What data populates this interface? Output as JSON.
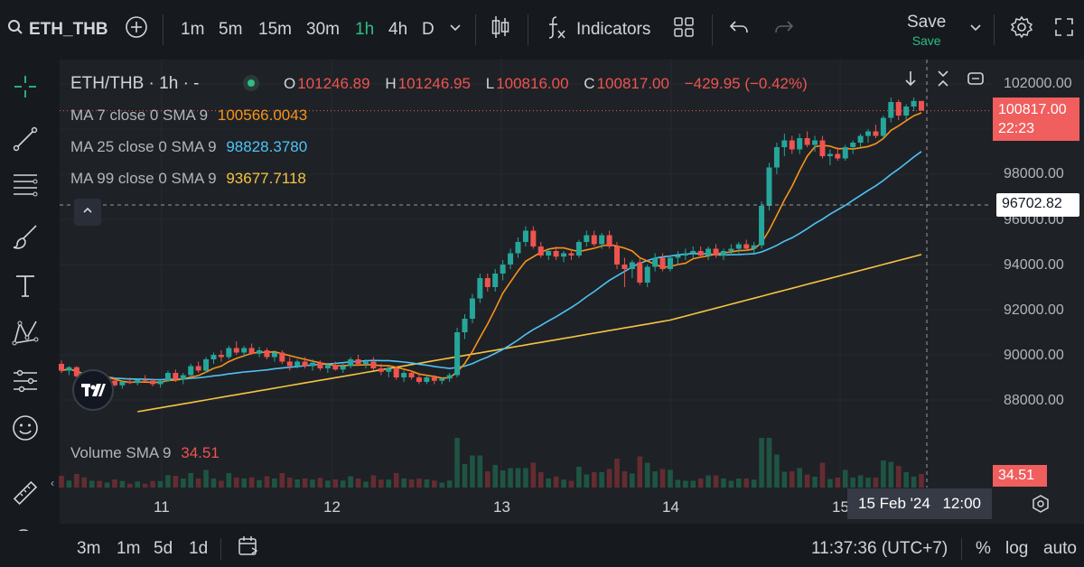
{
  "toolbar": {
    "symbol": "ETH_THB",
    "intervals": [
      "1m",
      "5m",
      "15m",
      "30m",
      "1h",
      "4h",
      "D"
    ],
    "active_interval": "1h",
    "indicators_label": "Indicators",
    "save_label": "Save",
    "save_sub_label": "Save"
  },
  "legend": {
    "title": "ETH/THB · 1h · -",
    "open_prefix": "O",
    "open": "101246.89",
    "high_prefix": "H",
    "high": "101246.95",
    "low_prefix": "L",
    "low": "100816.00",
    "close_prefix": "C",
    "close": "100817.00",
    "change": "−429.95 (−0.42%)",
    "ma7_label": "MA 7 close 0 SMA 9",
    "ma7_value": "100566.0043",
    "ma25_label": "MA 25 close 0 SMA 9",
    "ma25_value": "98828.3780",
    "ma99_label": "MA 99 close 0 SMA 9",
    "ma99_value": "93677.7118",
    "volume_label": "Volume SMA 9",
    "volume_value": "34.51"
  },
  "price_axis": {
    "labels": [
      "102000.00",
      "98000.00",
      "96000.00",
      "94000.00",
      "92000.00",
      "90000.00",
      "88000.00"
    ],
    "last_price": "100817.00",
    "countdown": "22:23",
    "crosshair_price": "96702.82",
    "volume_tag": "34.51"
  },
  "time_axis": {
    "labels": [
      "11",
      "12",
      "13",
      "14",
      "15"
    ],
    "crosshair_date": "15 Feb '24",
    "crosshair_time": "12:00"
  },
  "bottom": {
    "ranges": [
      "3m",
      "1m",
      "5d",
      "1d"
    ],
    "clock": "11:37:36 (UTC+7)",
    "percent": "%",
    "log": "log",
    "auto": "auto"
  },
  "colors": {
    "up": "#26a69a",
    "down": "#ef5350",
    "ma7": "#f7931a",
    "ma25": "#4fc3f7",
    "ma99": "#f6c343",
    "active_interval": "#2ebd85",
    "price_tag": "#f05e5e"
  },
  "chart_data": {
    "type": "candlestick",
    "x_label_days": [
      "11",
      "12",
      "13",
      "14",
      "15"
    ],
    "ylim": [
      86500,
      103000
    ],
    "candles": [
      [
        89600,
        89750,
        89200,
        89300
      ],
      [
        89300,
        89500,
        89100,
        89450
      ],
      [
        89450,
        89500,
        89000,
        89050
      ],
      [
        89050,
        89200,
        88700,
        88800
      ],
      [
        88800,
        89000,
        88500,
        88900
      ],
      [
        88900,
        89050,
        88700,
        88750
      ],
      [
        88750,
        88900,
        88600,
        88850
      ],
      [
        88850,
        89000,
        88600,
        88650
      ],
      [
        88650,
        88850,
        88500,
        88800
      ],
      [
        88800,
        89000,
        88700,
        88750
      ],
      [
        88750,
        88950,
        88650,
        88900
      ],
      [
        88900,
        89100,
        88800,
        88850
      ],
      [
        88850,
        88950,
        88600,
        88700
      ],
      [
        88700,
        88900,
        88550,
        88850
      ],
      [
        88850,
        89300,
        88800,
        89200
      ],
      [
        89200,
        89350,
        88800,
        88900
      ],
      [
        88900,
        89200,
        88700,
        89100
      ],
      [
        89100,
        89600,
        89000,
        89500
      ],
      [
        89500,
        89700,
        89200,
        89300
      ],
      [
        89300,
        89900,
        89200,
        89800
      ],
      [
        89800,
        90100,
        89600,
        90000
      ],
      [
        90000,
        90200,
        89700,
        89900
      ],
      [
        89900,
        90400,
        89800,
        90300
      ],
      [
        90300,
        90600,
        90000,
        90100
      ],
      [
        90100,
        90400,
        89900,
        90300
      ],
      [
        90300,
        90500,
        90000,
        90050
      ],
      [
        90050,
        90350,
        89900,
        90200
      ],
      [
        90200,
        90300,
        89800,
        89900
      ],
      [
        89900,
        90200,
        89700,
        90100
      ],
      [
        90100,
        90200,
        89600,
        89700
      ],
      [
        89700,
        89900,
        89300,
        89500
      ],
      [
        89500,
        89800,
        89400,
        89700
      ],
      [
        89700,
        89900,
        89400,
        89500
      ],
      [
        89500,
        89800,
        89300,
        89650
      ],
      [
        89650,
        89750,
        89300,
        89400
      ],
      [
        89400,
        89600,
        89200,
        89550
      ],
      [
        89550,
        89700,
        89300,
        89350
      ],
      [
        89350,
        89600,
        89200,
        89500
      ],
      [
        89500,
        89900,
        89400,
        89800
      ],
      [
        89800,
        90000,
        89500,
        89600
      ],
      [
        89600,
        89800,
        89400,
        89700
      ],
      [
        89700,
        89900,
        89300,
        89400
      ],
      [
        89400,
        89600,
        89100,
        89250
      ],
      [
        89250,
        89500,
        89000,
        89400
      ],
      [
        89400,
        89500,
        88900,
        89000
      ],
      [
        89000,
        89300,
        88800,
        89200
      ],
      [
        89200,
        89300,
        88900,
        89000
      ],
      [
        89000,
        89200,
        88700,
        88800
      ],
      [
        88800,
        89100,
        88700,
        89000
      ],
      [
        89000,
        89100,
        88700,
        88850
      ],
      [
        88850,
        89000,
        88700,
        88950
      ],
      [
        88950,
        89200,
        88800,
        89100
      ],
      [
        89100,
        91200,
        89000,
        91000
      ],
      [
        91000,
        91800,
        90700,
        91600
      ],
      [
        91600,
        92700,
        91400,
        92500
      ],
      [
        92500,
        93600,
        92300,
        93400
      ],
      [
        93400,
        93600,
        92800,
        93000
      ],
      [
        93000,
        93800,
        92800,
        93600
      ],
      [
        93600,
        94200,
        93300,
        94000
      ],
      [
        94000,
        94700,
        93800,
        94500
      ],
      [
        94500,
        95200,
        94300,
        95000
      ],
      [
        95000,
        95700,
        94800,
        95500
      ],
      [
        95500,
        95700,
        94700,
        94800
      ],
      [
        94800,
        95000,
        94300,
        94400
      ],
      [
        94400,
        94700,
        94200,
        94600
      ],
      [
        94600,
        94800,
        94200,
        94350
      ],
      [
        94350,
        94600,
        94100,
        94500
      ],
      [
        94500,
        94700,
        94200,
        94400
      ],
      [
        94400,
        95100,
        94300,
        95000
      ],
      [
        95000,
        95500,
        94800,
        95300
      ],
      [
        95300,
        95500,
        94800,
        94900
      ],
      [
        94900,
        95400,
        94700,
        95300
      ],
      [
        95300,
        95500,
        94700,
        94800
      ],
      [
        94800,
        95000,
        93800,
        94000
      ],
      [
        94000,
        94300,
        93000,
        93800
      ],
      [
        93800,
        94200,
        93400,
        94100
      ],
      [
        94100,
        94300,
        93100,
        93200
      ],
      [
        93200,
        94000,
        93000,
        93900
      ],
      [
        93900,
        94500,
        93700,
        94300
      ],
      [
        94300,
        94500,
        93700,
        93800
      ],
      [
        93800,
        94400,
        93700,
        94300
      ],
      [
        94300,
        94600,
        94000,
        94400
      ],
      [
        94400,
        94700,
        94200,
        94500
      ],
      [
        94500,
        94800,
        94300,
        94600
      ],
      [
        94600,
        94800,
        94300,
        94400
      ],
      [
        94400,
        94800,
        94200,
        94700
      ],
      [
        94700,
        94900,
        94300,
        94400
      ],
      [
        94400,
        94700,
        94200,
        94600
      ],
      [
        94600,
        94900,
        94400,
        94700
      ],
      [
        94700,
        95000,
        94500,
        94900
      ],
      [
        94900,
        95100,
        94600,
        94700
      ],
      [
        94700,
        95000,
        94500,
        94850
      ],
      [
        94850,
        96800,
        94700,
        96600
      ],
      [
        96600,
        98500,
        96400,
        98300
      ],
      [
        98300,
        99400,
        98000,
        99200
      ],
      [
        99200,
        99800,
        98800,
        99500
      ],
      [
        99500,
        99700,
        98900,
        99100
      ],
      [
        99100,
        99800,
        98900,
        99600
      ],
      [
        99600,
        99900,
        99200,
        99300
      ],
      [
        99300,
        99700,
        99000,
        99500
      ],
      [
        99500,
        99700,
        98700,
        98800
      ],
      [
        98800,
        99100,
        98400,
        98900
      ],
      [
        98900,
        99200,
        98600,
        98700
      ],
      [
        98700,
        99300,
        98600,
        99200
      ],
      [
        99200,
        99500,
        98900,
        99400
      ],
      [
        99400,
        99800,
        99200,
        99700
      ],
      [
        99700,
        100000,
        99400,
        99900
      ],
      [
        99900,
        100200,
        99600,
        99700
      ],
      [
        99700,
        100600,
        99600,
        100500
      ],
      [
        100500,
        101400,
        100300,
        101200
      ],
      [
        101200,
        101300,
        100400,
        100600
      ],
      [
        100600,
        101100,
        100400,
        101000
      ],
      [
        101000,
        101400,
        100800,
        101246.89
      ],
      [
        101246.89,
        101246.95,
        100816,
        100817
      ]
    ],
    "volume_sma": "34.51",
    "ma7_last": 100566.0043,
    "ma25_last": 98828.378,
    "ma99_last": 93677.7118
  }
}
